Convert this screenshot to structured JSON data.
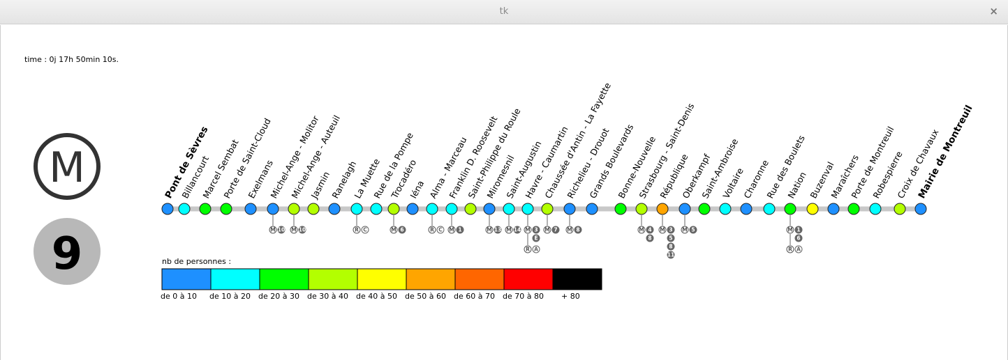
{
  "window": {
    "title": "tk",
    "close_glyph": "×"
  },
  "timer": "time : 0j 17h 50min 10s.",
  "metro_logo": {
    "icon": "metro-m-logo",
    "letter": "M"
  },
  "line": {
    "number": "9",
    "badge_color": "#b8b8b8",
    "track_color": "#c8c8c8"
  },
  "legend": {
    "title": "nb de personnes :",
    "bins": [
      {
        "label": "de 0 à 10",
        "color": "#1e90ff"
      },
      {
        "label": "de 10 à 20",
        "color": "#00ffff"
      },
      {
        "label": "de 20 à 30",
        "color": "#00ff00"
      },
      {
        "label": "de 30 à 40",
        "color": "#b3ff00"
      },
      {
        "label": "de 40 à  50",
        "color": "#ffff00"
      },
      {
        "label": "de 50 à 60",
        "color": "#ffa500"
      },
      {
        "label": "de 60 à 70",
        "color": "#ff6600"
      },
      {
        "label": "de 70 à  80",
        "color": "#ff0000"
      },
      {
        "label": "+ 80",
        "color": "#000000"
      }
    ]
  },
  "stations": [
    {
      "name": "Pont de Sèvres",
      "level": 0,
      "terminus": true,
      "corr": []
    },
    {
      "name": "Billancourt",
      "level": 1,
      "corr": []
    },
    {
      "name": "Marcel Sembat",
      "level": 2,
      "corr": []
    },
    {
      "name": "Porte de Saint-Cloud",
      "level": 2,
      "corr": []
    },
    {
      "name": "Exelmans",
      "level": 0,
      "corr": []
    },
    {
      "name": "Michel-Ange - Molitor",
      "level": 0,
      "corr": [
        [
          "M",
          "10"
        ]
      ]
    },
    {
      "name": "Michel-Ange - Auteuil",
      "level": 3,
      "corr": [
        [
          "M",
          "10"
        ]
      ]
    },
    {
      "name": "Jasmin",
      "level": 3,
      "corr": []
    },
    {
      "name": "Ranelagh",
      "level": 0,
      "corr": []
    },
    {
      "name": "La Muette",
      "level": 1,
      "corr": [
        [
          "RER",
          "C"
        ]
      ]
    },
    {
      "name": "Rue de la Pompe",
      "level": 1,
      "corr": []
    },
    {
      "name": "Trocadéro",
      "level": 3,
      "corr": [
        [
          "M",
          "6"
        ]
      ]
    },
    {
      "name": "Iéna",
      "level": 0,
      "corr": []
    },
    {
      "name": "Alma - Marceau",
      "level": 1,
      "corr": [
        [
          "RER",
          "C"
        ]
      ]
    },
    {
      "name": "Franklin D. Roosevelt",
      "level": 1,
      "corr": [
        [
          "M",
          "1"
        ]
      ]
    },
    {
      "name": "Saint-Philippe du Roule",
      "level": 3,
      "corr": []
    },
    {
      "name": "Miromesnil",
      "level": 0,
      "corr": [
        [
          "M",
          "13"
        ]
      ]
    },
    {
      "name": "Saint-Augustin",
      "level": 1,
      "corr": [
        [
          "M",
          "14"
        ]
      ]
    },
    {
      "name": "Havre - Caumartin",
      "level": 1,
      "corr": [
        [
          "M",
          "3"
        ],
        [
          "RER",
          "A"
        ],
        [
          "",
          "E"
        ]
      ]
    },
    {
      "name": "Chaussée d'Antin - La Fayette",
      "level": 3,
      "corr": [
        [
          "M",
          "7"
        ]
      ]
    },
    {
      "name": "Richelieu - Drouot",
      "level": 0,
      "corr": [
        [
          "M",
          "8"
        ]
      ]
    },
    {
      "name": "Grands Boulevards",
      "level": 0,
      "corr": []
    },
    {
      "name": "Bonne-Nouvelle",
      "level": 2,
      "corr": []
    },
    {
      "name": "Strasbourg - Saint-Denis",
      "level": 3,
      "corr": [
        [
          "M",
          "4"
        ],
        [
          "",
          "8"
        ]
      ]
    },
    {
      "name": "République",
      "level": 5,
      "corr": [
        [
          "M",
          "3"
        ],
        [
          "",
          "5"
        ],
        [
          "",
          "8"
        ],
        [
          "",
          "11"
        ]
      ]
    },
    {
      "name": "Oberkampf",
      "level": 0,
      "corr": [
        [
          "M",
          "5"
        ]
      ]
    },
    {
      "name": "Saint-Ambroise",
      "level": 2,
      "corr": []
    },
    {
      "name": "Voltaire",
      "level": 1,
      "corr": []
    },
    {
      "name": "Charonne",
      "level": 0,
      "corr": []
    },
    {
      "name": "Rue des Boulets",
      "level": 1,
      "corr": []
    },
    {
      "name": "Nation",
      "level": 2,
      "corr": [
        [
          "M",
          "1"
        ],
        [
          "",
          "6"
        ],
        [
          "RER",
          "A"
        ]
      ]
    },
    {
      "name": "Buzenval",
      "level": 4,
      "corr": []
    },
    {
      "name": "Maraîchers",
      "level": 0,
      "corr": []
    },
    {
      "name": "Porte de Montreuil",
      "level": 2,
      "corr": []
    },
    {
      "name": "Robespierre",
      "level": 1,
      "corr": []
    },
    {
      "name": "Croix de Chavaux",
      "level": 3,
      "corr": []
    },
    {
      "name": "Mairie de Montreuil",
      "level": 0,
      "terminus": true,
      "corr": []
    }
  ]
}
